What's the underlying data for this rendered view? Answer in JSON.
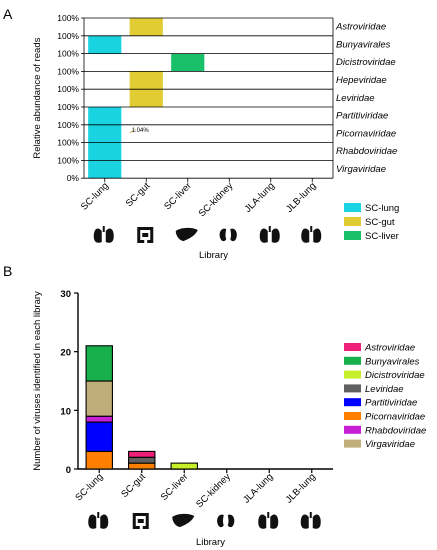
{
  "panels": {
    "a_letter": "A",
    "b_letter": "B"
  },
  "chart_data": [
    {
      "type": "heatmap",
      "panel": "A",
      "ylabel": "Relative abundance of reads",
      "xlabel": "Library",
      "categories": [
        "SC-lung",
        "SC-gut",
        "SC-liver",
        "SC-kidney",
        "JLA-lung",
        "JLB-lung"
      ],
      "rows": [
        "Astroviridae",
        "Bunyavirales",
        "Dicistroviridae",
        "Hepeviridae",
        "Leviridae",
        "Partitiviridae",
        "Picornaviridae",
        "Rhabdoviridae",
        "Virgaviridae"
      ],
      "row_tick_label": "100%",
      "bottom_tick_label": "0%",
      "annotation": "1.04%",
      "cells": [
        {
          "row": "Astroviridae",
          "library": "SC-gut",
          "series": "SC-gut",
          "value": 100
        },
        {
          "row": "Bunyavirales",
          "library": "SC-lung",
          "series": "SC-lung",
          "value": 100
        },
        {
          "row": "Dicistroviridae",
          "library": "SC-liver",
          "series": "SC-liver",
          "value": 100
        },
        {
          "row": "Hepeviridae",
          "library": "SC-gut",
          "series": "SC-gut",
          "value": 100
        },
        {
          "row": "Leviridae",
          "library": "SC-gut",
          "series": "SC-gut",
          "value": 100
        },
        {
          "row": "Partitiviridae",
          "library": "SC-lung",
          "series": "SC-lung",
          "value": 100
        },
        {
          "row": "Picornaviridae",
          "library": "SC-lung",
          "series": "SC-lung",
          "value": 100
        },
        {
          "row": "Picornaviridae",
          "library": "SC-gut",
          "series": "SC-gut",
          "value": 1.04
        },
        {
          "row": "Rhabdoviridae",
          "library": "SC-lung",
          "series": "SC-lung",
          "value": 100
        },
        {
          "row": "Virgaviridae",
          "library": "SC-lung",
          "series": "SC-lung",
          "value": 100
        }
      ],
      "legend": [
        {
          "name": "SC-lung",
          "color": "#19d3e0"
        },
        {
          "name": "SC-gut",
          "color": "#e2cc33"
        },
        {
          "name": "SC-liver",
          "color": "#18c06a"
        }
      ],
      "legend_position": "right"
    },
    {
      "type": "bar",
      "stacked": true,
      "panel": "B",
      "ylabel": "Number of viruses identified in each library",
      "xlabel": "Library",
      "categories": [
        "SC-lung",
        "SC-gut",
        "SC-liver",
        "SC-kidney",
        "JLA-lung",
        "JLB-lung"
      ],
      "ylim": [
        0,
        30
      ],
      "yticks": [
        0,
        10,
        20,
        30
      ],
      "series": [
        {
          "name": "Picornaviridae",
          "color": "#ff8000",
          "values": [
            3,
            1,
            0,
            0,
            0,
            0
          ]
        },
        {
          "name": "Partitiviridae",
          "color": "#0000ff",
          "values": [
            5,
            0,
            0,
            0,
            0,
            0
          ]
        },
        {
          "name": "Rhabdoviridae",
          "color": "#c71fd6",
          "values": [
            1,
            0,
            0,
            0,
            0,
            0
          ]
        },
        {
          "name": "Virgaviridae",
          "color": "#bfad7a",
          "values": [
            6,
            0,
            0,
            0,
            0,
            0
          ]
        },
        {
          "name": "Leviridae",
          "color": "#606060",
          "values": [
            0,
            1,
            0,
            0,
            0,
            0
          ]
        },
        {
          "name": "Astroviridae",
          "color": "#f0207a",
          "values": [
            0,
            1,
            0,
            0,
            0,
            0
          ]
        },
        {
          "name": "Dicistroviridae",
          "color": "#c8f02a",
          "values": [
            0,
            0,
            1,
            0,
            0,
            0
          ]
        },
        {
          "name": "Bunyavirales",
          "color": "#18b04a",
          "values": [
            6,
            0,
            0,
            0,
            0,
            0
          ]
        }
      ],
      "legend_order": [
        "Astroviridae",
        "Bunyavirales",
        "Dicistroviridae",
        "Leviridae",
        "Partitiviridae",
        "Picornaviridae",
        "Rhabdoviridae",
        "Virgaviridae"
      ],
      "legend_position": "right"
    }
  ],
  "organ_icons": [
    "lung-icon",
    "intestine-icon",
    "liver-icon",
    "kidney-icon",
    "lung-icon",
    "lung-icon"
  ]
}
